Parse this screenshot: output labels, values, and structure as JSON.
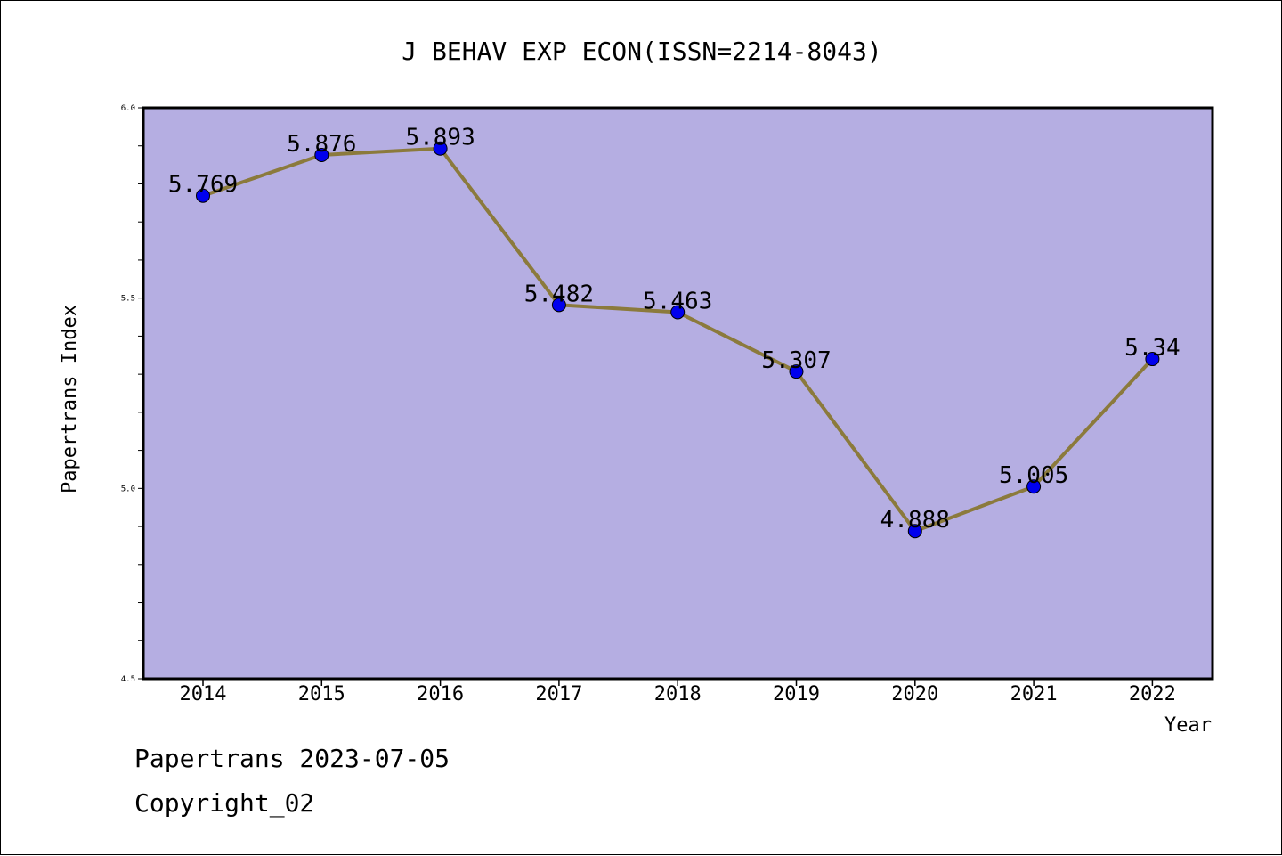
{
  "chart_data": {
    "type": "line",
    "title": "J BEHAV EXP ECON(ISSN=2214-8043)",
    "xlabel": "Year",
    "ylabel": "Papertrans Index",
    "categories": [
      "2014",
      "2015",
      "2016",
      "2017",
      "2018",
      "2019",
      "2020",
      "2021",
      "2022"
    ],
    "values": [
      5.769,
      5.876,
      5.893,
      5.482,
      5.463,
      5.307,
      4.888,
      5.005,
      5.34
    ],
    "data_labels": [
      "5.769",
      "5.876",
      "5.893",
      "5.482",
      "5.463",
      "5.307",
      "4.888",
      "5.005",
      "5.34"
    ],
    "ylim": [
      4.5,
      6.0
    ],
    "yticks": [
      "4.5",
      "5.0",
      "5.5",
      "6.0"
    ],
    "grid": false,
    "colors": {
      "plot_background": "#b5aee2",
      "line": "#8b7a3c",
      "marker": "#0000ee"
    }
  },
  "footer": {
    "line1": "Papertrans 2023-07-05",
    "line2": "Copyright_02"
  }
}
